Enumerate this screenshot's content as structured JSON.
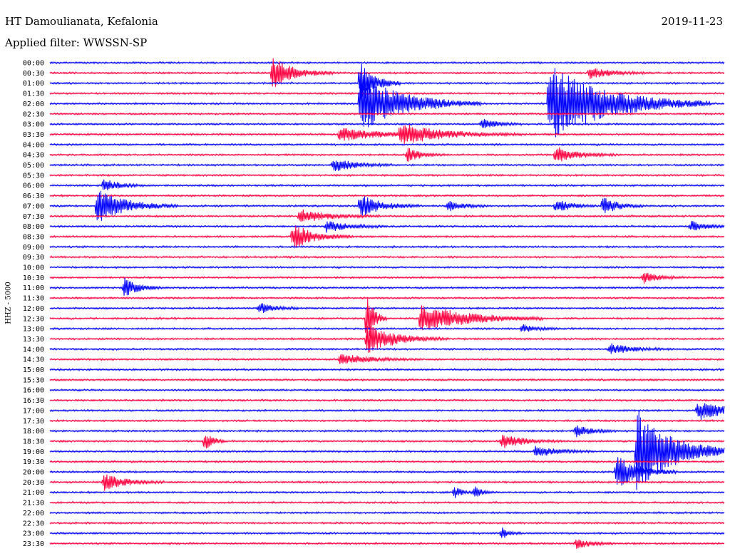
{
  "header": {
    "station": "HT Damoulianata, Kefalonia",
    "date": "2019-11-23",
    "filter": "Applied filter: WWSSN-SP"
  },
  "chart_data": {
    "type": "line",
    "ylabel": "HHZ - 5000",
    "time_labels": [
      "00:00",
      "00:30",
      "01:00",
      "01:30",
      "02:00",
      "02:30",
      "03:00",
      "03:30",
      "04:00",
      "04:30",
      "05:00",
      "05:30",
      "06:00",
      "06:30",
      "07:00",
      "07:30",
      "08:00",
      "08:30",
      "09:00",
      "09:30",
      "10:00",
      "10:30",
      "11:00",
      "11:30",
      "12:00",
      "12:30",
      "13:00",
      "13:30",
      "14:00",
      "14:30",
      "15:00",
      "15:30",
      "16:00",
      "16:30",
      "17:00",
      "17:30",
      "18:00",
      "18:30",
      "19:00",
      "19:30",
      "20:00",
      "20:30",
      "21:00",
      "21:30",
      "22:00",
      "22:30",
      "23:00",
      "23:30"
    ],
    "trace_colors": [
      "#0000ff",
      "#ff0040"
    ],
    "minutes_per_line": 30,
    "events": [
      {
        "line": 1,
        "t": 0.33,
        "amp": 22,
        "dur": 0.03
      },
      {
        "line": 1,
        "t": 0.8,
        "amp": 8,
        "dur": 0.03
      },
      {
        "line": 2,
        "t": 0.46,
        "amp": 30,
        "dur": 0.02
      },
      {
        "line": 4,
        "t": 0.46,
        "amp": 40,
        "dur": 0.06
      },
      {
        "line": 4,
        "t": 0.74,
        "amp": 55,
        "dur": 0.08
      },
      {
        "line": 6,
        "t": 0.64,
        "amp": 8,
        "dur": 0.02
      },
      {
        "line": 7,
        "t": 0.43,
        "amp": 10,
        "dur": 0.05
      },
      {
        "line": 7,
        "t": 0.52,
        "amp": 14,
        "dur": 0.06
      },
      {
        "line": 9,
        "t": 0.75,
        "amp": 12,
        "dur": 0.03
      },
      {
        "line": 9,
        "t": 0.53,
        "amp": 10,
        "dur": 0.02
      },
      {
        "line": 10,
        "t": 0.42,
        "amp": 10,
        "dur": 0.03
      },
      {
        "line": 12,
        "t": 0.08,
        "amp": 10,
        "dur": 0.02
      },
      {
        "line": 14,
        "t": 0.07,
        "amp": 24,
        "dur": 0.04
      },
      {
        "line": 14,
        "t": 0.46,
        "amp": 16,
        "dur": 0.03
      },
      {
        "line": 14,
        "t": 0.59,
        "amp": 8,
        "dur": 0.02
      },
      {
        "line": 14,
        "t": 0.75,
        "amp": 10,
        "dur": 0.02
      },
      {
        "line": 14,
        "t": 0.82,
        "amp": 14,
        "dur": 0.02
      },
      {
        "line": 15,
        "t": 0.37,
        "amp": 10,
        "dur": 0.04
      },
      {
        "line": 16,
        "t": 0.41,
        "amp": 8,
        "dur": 0.03
      },
      {
        "line": 16,
        "t": 0.95,
        "amp": 8,
        "dur": 0.02
      },
      {
        "line": 17,
        "t": 0.36,
        "amp": 18,
        "dur": 0.03
      },
      {
        "line": 21,
        "t": 0.88,
        "amp": 8,
        "dur": 0.02
      },
      {
        "line": 22,
        "t": 0.11,
        "amp": 14,
        "dur": 0.02
      },
      {
        "line": 24,
        "t": 0.31,
        "amp": 8,
        "dur": 0.02
      },
      {
        "line": 25,
        "t": 0.47,
        "amp": 40,
        "dur": 0.01
      },
      {
        "line": 25,
        "t": 0.55,
        "amp": 22,
        "dur": 0.06
      },
      {
        "line": 26,
        "t": 0.7,
        "amp": 6,
        "dur": 0.02
      },
      {
        "line": 27,
        "t": 0.47,
        "amp": 20,
        "dur": 0.04
      },
      {
        "line": 28,
        "t": 0.83,
        "amp": 8,
        "dur": 0.03
      },
      {
        "line": 29,
        "t": 0.43,
        "amp": 8,
        "dur": 0.04
      },
      {
        "line": 34,
        "t": 0.96,
        "amp": 14,
        "dur": 0.04
      },
      {
        "line": 36,
        "t": 0.78,
        "amp": 8,
        "dur": 0.02
      },
      {
        "line": 37,
        "t": 0.67,
        "amp": 10,
        "dur": 0.03
      },
      {
        "line": 37,
        "t": 0.23,
        "amp": 14,
        "dur": 0.01
      },
      {
        "line": 38,
        "t": 0.72,
        "amp": 8,
        "dur": 0.03
      },
      {
        "line": 38,
        "t": 0.87,
        "amp": 60,
        "dur": 0.05
      },
      {
        "line": 40,
        "t": 0.84,
        "amp": 24,
        "dur": 0.03
      },
      {
        "line": 41,
        "t": 0.08,
        "amp": 12,
        "dur": 0.03
      },
      {
        "line": 42,
        "t": 0.6,
        "amp": 8,
        "dur": 0.01
      },
      {
        "line": 42,
        "t": 0.63,
        "amp": 8,
        "dur": 0.01
      },
      {
        "line": 46,
        "t": 0.67,
        "amp": 8,
        "dur": 0.01
      },
      {
        "line": 47,
        "t": 0.78,
        "amp": 8,
        "dur": 0.02
      }
    ]
  }
}
